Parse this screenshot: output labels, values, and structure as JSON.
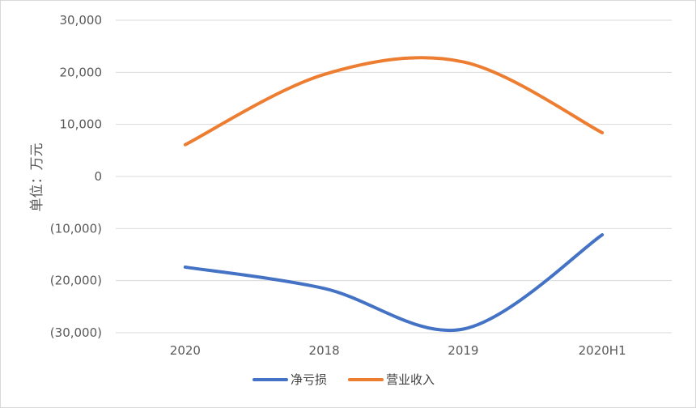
{
  "chart_data": {
    "type": "line",
    "categories": [
      "2020",
      "2018",
      "2019",
      "2020H1"
    ],
    "ylabel": "单位：万元",
    "ylim": [
      -30000,
      30000
    ],
    "yticks": [
      30000,
      20000,
      10000,
      0,
      -10000,
      -20000,
      -30000
    ],
    "ytick_labels": [
      "30,000",
      "20,000",
      "10,000",
      "0",
      "(10,000)",
      "(20,000)",
      "(30,000)"
    ],
    "grid": true,
    "smooth": true,
    "legend_position": "bottom",
    "series": [
      {
        "name": "净亏损",
        "color": "#4472C4",
        "values": [
          -17400,
          -21500,
          -29300,
          -11200
        ]
      },
      {
        "name": "营业收入",
        "color": "#ED7D31",
        "values": [
          6100,
          19600,
          22000,
          8400
        ]
      }
    ]
  }
}
